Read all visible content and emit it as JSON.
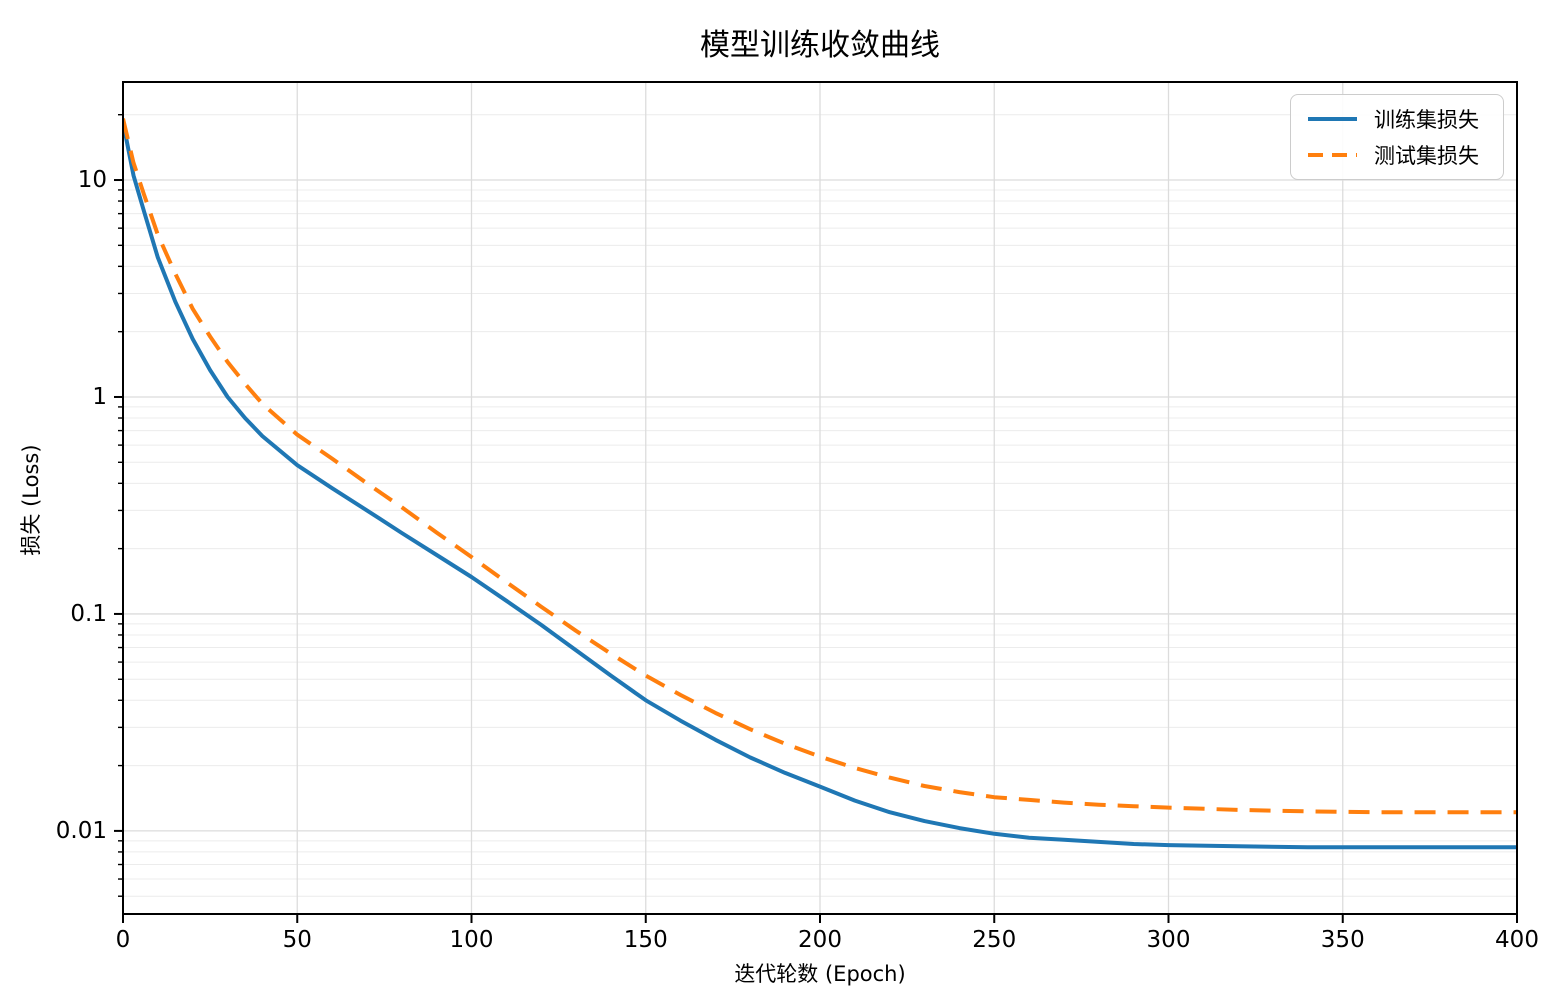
{
  "chart_data": {
    "type": "line",
    "title": "模型训练收敛曲线",
    "xlabel": "迭代轮数 (Epoch)",
    "ylabel": "损失 (Loss)",
    "x_scale": "linear",
    "y_scale": "log",
    "xlim": [
      0,
      400
    ],
    "ylim": [
      0.00414,
      28.3
    ],
    "grid": "both",
    "legend_position": "upper right",
    "x_ticks": [
      0,
      50,
      100,
      150,
      200,
      250,
      300,
      350,
      400
    ],
    "y_ticks": [
      {
        "value": 10,
        "label": "10"
      },
      {
        "value": 1,
        "label": "1"
      },
      {
        "value": 0.1,
        "label": "0.1"
      },
      {
        "value": 0.01,
        "label": "0.01"
      }
    ],
    "x": [
      0,
      3,
      6,
      10,
      15,
      20,
      25,
      30,
      35,
      40,
      50,
      60,
      70,
      80,
      90,
      100,
      110,
      120,
      130,
      140,
      150,
      160,
      170,
      180,
      190,
      200,
      210,
      220,
      230,
      240,
      250,
      260,
      270,
      280,
      290,
      300,
      320,
      340,
      360,
      380,
      400
    ],
    "series": [
      {
        "key": "training-loss",
        "name": "训练集损失",
        "color": "#1f77b4",
        "style": "solid",
        "final_value": 0.0084,
        "values": [
          18.5,
          10.5,
          7.2,
          4.4,
          2.75,
          1.85,
          1.33,
          1.0,
          0.8,
          0.66,
          0.485,
          0.38,
          0.3,
          0.236,
          0.187,
          0.148,
          0.115,
          0.089,
          0.068,
          0.052,
          0.04,
          0.0322,
          0.0263,
          0.0218,
          0.0185,
          0.016,
          0.0138,
          0.0122,
          0.0111,
          0.0103,
          0.0097,
          0.0093,
          0.0091,
          0.0089,
          0.0087,
          0.0086,
          0.0085,
          0.0084,
          0.0084,
          0.0084,
          0.0084
        ]
      },
      {
        "key": "test-loss",
        "name": "测试集损失",
        "color": "#ff7f0e",
        "style": "dashed",
        "final_value": 0.0122,
        "values": [
          19.2,
          12.0,
          8.6,
          5.6,
          3.7,
          2.55,
          1.9,
          1.45,
          1.15,
          0.93,
          0.67,
          0.52,
          0.4,
          0.31,
          0.237,
          0.183,
          0.14,
          0.108,
          0.0836,
          0.0656,
          0.052,
          0.0423,
          0.035,
          0.0294,
          0.0252,
          0.022,
          0.0195,
          0.0176,
          0.0161,
          0.0151,
          0.0143,
          0.0139,
          0.0135,
          0.0132,
          0.013,
          0.0128,
          0.0125,
          0.0123,
          0.0122,
          0.0122,
          0.0122
        ]
      }
    ],
    "colors": {
      "train_line": "#1f77b4",
      "test_line": "#ff7f0e",
      "grid_major": "#dcdcdc",
      "grid_minor": "#ececec",
      "spine": "#000000"
    }
  }
}
